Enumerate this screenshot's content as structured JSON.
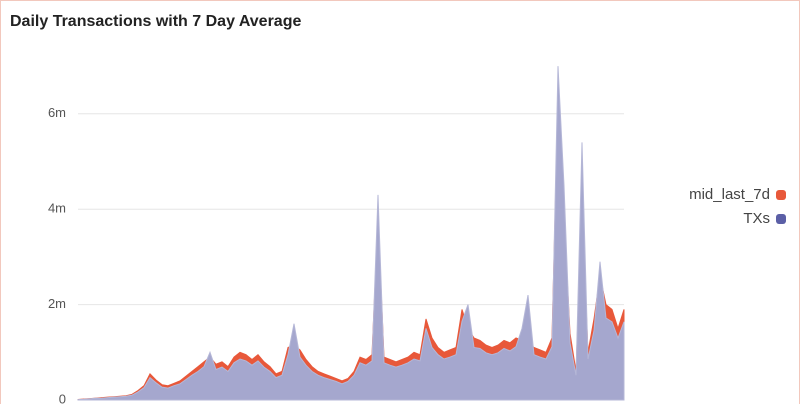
{
  "chart_data": {
    "type": "area",
    "title": "Daily Transactions with 7 Day Average",
    "categories": [
      null,
      null,
      null,
      null,
      null,
      null,
      null,
      null,
      null,
      null,
      null,
      null,
      null,
      null,
      null,
      null,
      null,
      null,
      null,
      null,
      null,
      null,
      null,
      null,
      null,
      null,
      null,
      null,
      null,
      null,
      null,
      null,
      null,
      null,
      null,
      null,
      null,
      null,
      null,
      null,
      null,
      null,
      null,
      null,
      null,
      null,
      null,
      null,
      null,
      null,
      null,
      null,
      null,
      null,
      null,
      null,
      null,
      null,
      null,
      null,
      null,
      null,
      null,
      null,
      null,
      null,
      null,
      null,
      null,
      null,
      null,
      null,
      null,
      null,
      null,
      null,
      null,
      null,
      null,
      null,
      null,
      null,
      null,
      null,
      null,
      null,
      null,
      null,
      null,
      null,
      null,
      null
    ],
    "series": [
      {
        "name": "mid_last_7d",
        "color": "#e8583a",
        "values": [
          10000,
          20000,
          30000,
          40000,
          50000,
          60000,
          70000,
          80000,
          90000,
          120000,
          200000,
          300000,
          550000,
          420000,
          320000,
          300000,
          350000,
          400000,
          500000,
          600000,
          700000,
          800000,
          900000,
          750000,
          800000,
          700000,
          900000,
          1000000,
          950000,
          850000,
          950000,
          800000,
          700000,
          550000,
          600000,
          1100000,
          1150000,
          1050000,
          850000,
          700000,
          600000,
          550000,
          500000,
          450000,
          400000,
          450000,
          600000,
          900000,
          850000,
          950000,
          3800000,
          900000,
          850000,
          800000,
          850000,
          900000,
          1000000,
          950000,
          1700000,
          1300000,
          1100000,
          1000000,
          1050000,
          1100000,
          1900000,
          1500000,
          1300000,
          1250000,
          1150000,
          1100000,
          1150000,
          1250000,
          1200000,
          1300000,
          1250000,
          1200000,
          1100000,
          1050000,
          1000000,
          1300000,
          6300000,
          3800000,
          1400000,
          600000,
          4000000,
          1000000,
          1700000,
          2600000,
          2000000,
          1900000,
          1500000,
          1900000
        ]
      },
      {
        "name": "TXs",
        "color": "#5b5fa6",
        "values": [
          8000,
          15000,
          25000,
          35000,
          40000,
          50000,
          60000,
          70000,
          80000,
          100000,
          170000,
          260000,
          470000,
          360000,
          270000,
          250000,
          300000,
          340000,
          430000,
          520000,
          600000,
          700000,
          1000000,
          640000,
          690000,
          600000,
          780000,
          860000,
          820000,
          730000,
          820000,
          690000,
          600000,
          470000,
          520000,
          950000,
          1600000,
          900000,
          730000,
          600000,
          520000,
          470000,
          430000,
          390000,
          340000,
          390000,
          520000,
          780000,
          730000,
          820000,
          4300000,
          780000,
          730000,
          690000,
          730000,
          780000,
          860000,
          820000,
          1500000,
          1100000,
          950000,
          860000,
          900000,
          950000,
          1650000,
          2000000,
          1100000,
          1080000,
          990000,
          950000,
          990000,
          1080000,
          1030000,
          1120000,
          1500000,
          2200000,
          950000,
          900000,
          860000,
          1120000,
          7000000,
          4500000,
          1200000,
          520000,
          5400000,
          860000,
          1460000,
          2900000,
          1720000,
          1640000,
          1300000,
          1640000
        ]
      }
    ],
    "ylim": [
      0,
      7400000
    ],
    "yticks": [
      {
        "value": 0,
        "label": "0"
      },
      {
        "value": 2000000,
        "label": "2m"
      },
      {
        "value": 4000000,
        "label": "4m"
      },
      {
        "value": 6000000,
        "label": "6m"
      }
    ],
    "grid": true,
    "legend": "right"
  }
}
